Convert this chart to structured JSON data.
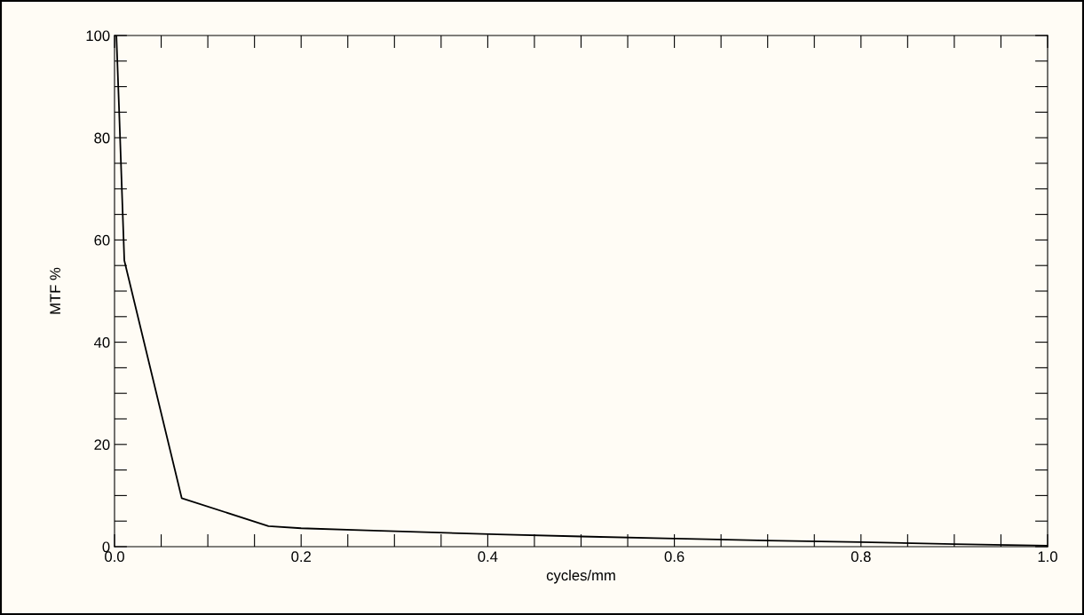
{
  "chart_data": {
    "type": "line",
    "xlabel": "cycles/mm",
    "ylabel": "MTF %",
    "x": [
      0.002,
      0.005,
      0.0105,
      0.072,
      0.165,
      0.2,
      0.27,
      0.34,
      0.41,
      0.5,
      0.6,
      0.7,
      0.8,
      0.9,
      1.0
    ],
    "series": [
      {
        "color": "#000000",
        "values": [
          100,
          85,
          56,
          9.5,
          4,
          3.6,
          3.2,
          2.8,
          2.4,
          2.0,
          1.6,
          1.2,
          0.9,
          0.5,
          0.2
        ]
      }
    ],
    "xlim": [
      0,
      1
    ],
    "ylim": [
      0,
      100
    ],
    "xticks": [
      {
        "value": 0,
        "label": "0.0"
      },
      {
        "value": 0.05,
        "label": null
      },
      {
        "value": 0.1,
        "label": null
      },
      {
        "value": 0.15,
        "label": null
      },
      {
        "value": 0.2,
        "label": "0.2"
      },
      {
        "value": 0.25,
        "label": null
      },
      {
        "value": 0.3,
        "label": null
      },
      {
        "value": 0.35,
        "label": null
      },
      {
        "value": 0.4,
        "label": "0.4"
      },
      {
        "value": 0.45,
        "label": null
      },
      {
        "value": 0.5,
        "label": null
      },
      {
        "value": 0.55,
        "label": null
      },
      {
        "value": 0.6,
        "label": "0.6"
      },
      {
        "value": 0.65,
        "label": null
      },
      {
        "value": 0.7,
        "label": null
      },
      {
        "value": 0.75,
        "label": null
      },
      {
        "value": 0.8,
        "label": "0.8"
      },
      {
        "value": 0.85,
        "label": null
      },
      {
        "value": 0.9,
        "label": null
      },
      {
        "value": 0.95,
        "label": null
      },
      {
        "value": 1,
        "label": "1.0"
      }
    ],
    "yticks": [
      0,
      {
        "value": 5,
        "label": null
      },
      {
        "value": 10,
        "label": null
      },
      {
        "value": 15,
        "label": null
      },
      20,
      {
        "value": 25,
        "label": null
      },
      {
        "value": 30,
        "label": null
      },
      {
        "value": 35,
        "label": null
      },
      40,
      {
        "value": 45,
        "label": null
      },
      {
        "value": 50,
        "label": null
      },
      {
        "value": 55,
        "label": null
      },
      60,
      {
        "value": 65,
        "label": null
      },
      {
        "value": 70,
        "label": null
      },
      {
        "value": 75,
        "label": null
      },
      80,
      {
        "value": 85,
        "label": null
      },
      {
        "value": 90,
        "label": null
      },
      {
        "value": 95,
        "label": null
      },
      100
    ],
    "grid": false,
    "legend": false,
    "marker": "none",
    "line_style": "solid"
  }
}
